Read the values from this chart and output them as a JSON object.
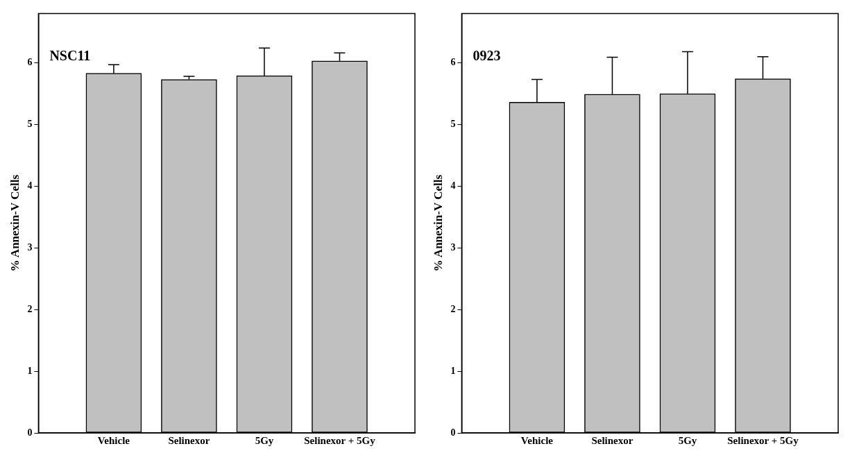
{
  "chart_data": [
    {
      "type": "bar",
      "annotations": [
        "NSC11"
      ],
      "ylabel": "% Annexin-V Cells",
      "categories": [
        "Vehicle",
        "Selinexor",
        "5Gy",
        "Selinexor + 5Gy"
      ],
      "values": [
        5.83,
        5.73,
        5.79,
        6.03
      ],
      "errors": [
        [
          5.83,
          5.97
        ],
        [
          5.73,
          5.78
        ],
        [
          5.79,
          6.24
        ],
        [
          6.03,
          6.16
        ]
      ],
      "color": "#c0c0c0",
      "ylim": [
        0,
        6.8
      ],
      "yticks": [
        0,
        1,
        2,
        3,
        4,
        5,
        6
      ],
      "grid": false,
      "legend": false
    },
    {
      "type": "bar",
      "annotations": [
        "0923"
      ],
      "ylabel": "% Annexin-V Cells",
      "categories": [
        "Vehicle",
        "Selinexor",
        "5Gy",
        "Selinexor + 5Gy"
      ],
      "values": [
        5.36,
        5.49,
        5.5,
        5.74
      ],
      "errors": [
        [
          5.36,
          5.73
        ],
        [
          5.49,
          6.09
        ],
        [
          5.5,
          6.18
        ],
        [
          5.74,
          6.1
        ]
      ],
      "color": "#c0c0c0",
      "ylim": [
        0,
        6.8
      ],
      "yticks": [
        0,
        1,
        2,
        3,
        4,
        5,
        6
      ],
      "grid": false,
      "legend": false
    }
  ]
}
